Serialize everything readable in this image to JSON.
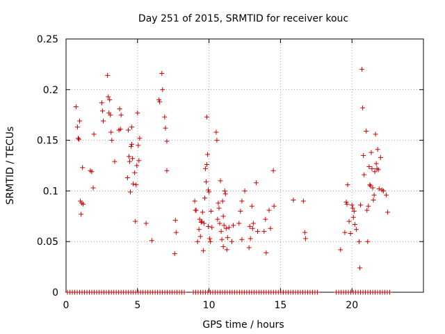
{
  "chart_data": {
    "type": "scatter",
    "title": "Day 251 of 2015, SRMTID for receiver kouc",
    "xlabel": "GPS time / hours",
    "ylabel": "SRMTID / TECUs",
    "xlim": [
      0,
      25
    ],
    "ylim": [
      0,
      0.25
    ],
    "x_ticks": [
      0,
      5,
      10,
      15,
      20
    ],
    "y_ticks": [
      0,
      0.05,
      0.1,
      0.15,
      0.2,
      0.25
    ],
    "x_tick_labels": [
      "0",
      "5",
      "10",
      "15",
      "20"
    ],
    "y_tick_labels": [
      "0",
      "0.05",
      "0.1",
      "0.15",
      "0.2",
      "0.25"
    ],
    "grid": true,
    "marker": "+",
    "marker_color": "#cc0000",
    "series": [
      {
        "name": "SRMTID",
        "points": [
          [
            0.7,
            0.183
          ],
          [
            0.8,
            0.163
          ],
          [
            0.85,
            0.152
          ],
          [
            0.9,
            0.151
          ],
          [
            0.95,
            0.169
          ],
          [
            1.0,
            0.09
          ],
          [
            1.05,
            0.077
          ],
          [
            1.1,
            0.088
          ],
          [
            1.15,
            0.123
          ],
          [
            1.2,
            0.087
          ],
          [
            1.7,
            0.12
          ],
          [
            1.8,
            0.119
          ],
          [
            1.9,
            0.103
          ],
          [
            1.95,
            0.156
          ],
          [
            2.5,
            0.187
          ],
          [
            2.55,
            0.179
          ],
          [
            2.6,
            0.169
          ],
          [
            2.9,
            0.214
          ],
          [
            2.95,
            0.193
          ],
          [
            3.0,
            0.177
          ],
          [
            3.05,
            0.19
          ],
          [
            3.1,
            0.175
          ],
          [
            3.15,
            0.158
          ],
          [
            3.2,
            0.15
          ],
          [
            3.4,
            0.129
          ],
          [
            3.7,
            0.16
          ],
          [
            3.75,
            0.181
          ],
          [
            3.8,
            0.161
          ],
          [
            3.85,
            0.175
          ],
          [
            4.3,
            0.113
          ],
          [
            4.35,
            0.16
          ],
          [
            4.4,
            0.134
          ],
          [
            4.45,
            0.129
          ],
          [
            4.5,
            0.099
          ],
          [
            4.55,
            0.144
          ],
          [
            4.6,
            0.163
          ],
          [
            4.6,
            0.146
          ],
          [
            4.65,
            0.132
          ],
          [
            4.7,
            0.107
          ],
          [
            4.8,
            0.118
          ],
          [
            4.85,
            0.07
          ],
          [
            4.9,
            0.106
          ],
          [
            4.95,
            0.125
          ],
          [
            5.0,
            0.177
          ],
          [
            5.05,
            0.145
          ],
          [
            5.1,
            0.13
          ],
          [
            5.15,
            0.152
          ],
          [
            5.6,
            0.068
          ],
          [
            6.0,
            0.051
          ],
          [
            6.5,
            0.19
          ],
          [
            6.55,
            0.188
          ],
          [
            6.7,
            0.216
          ],
          [
            6.75,
            0.2
          ],
          [
            6.9,
            0.173
          ],
          [
            6.95,
            0.162
          ],
          [
            7.05,
            0.149
          ],
          [
            7.05,
            0.12
          ],
          [
            7.6,
            0.038
          ],
          [
            7.65,
            0.071
          ],
          [
            7.7,
            0.059
          ],
          [
            9.0,
            0.09
          ],
          [
            9.05,
            0.081
          ],
          [
            9.1,
            0.081
          ],
          [
            9.2,
            0.05
          ],
          [
            9.3,
            0.062
          ],
          [
            9.35,
            0.072
          ],
          [
            9.4,
            0.055
          ],
          [
            9.45,
            0.069
          ],
          [
            9.5,
            0.07
          ],
          [
            9.55,
            0.079
          ],
          [
            9.6,
            0.041
          ],
          [
            9.65,
            0.068
          ],
          [
            9.7,
            0.093
          ],
          [
            9.75,
            0.122
          ],
          [
            9.8,
            0.109
          ],
          [
            9.85,
            0.126
          ],
          [
            9.85,
            0.173
          ],
          [
            9.9,
            0.136
          ],
          [
            9.95,
            0.101
          ],
          [
            9.95,
            0.065
          ],
          [
            10.0,
            0.099
          ],
          [
            10.05,
            0.053
          ],
          [
            10.1,
            0.05
          ],
          [
            10.15,
            0.08
          ],
          [
            10.2,
            0.064
          ],
          [
            10.5,
            0.158
          ],
          [
            10.55,
            0.15
          ],
          [
            10.6,
            0.072
          ],
          [
            10.65,
            0.088
          ],
          [
            10.7,
            0.083
          ],
          [
            10.75,
            0.068
          ],
          [
            10.8,
            0.11
          ],
          [
            10.85,
            0.06
          ],
          [
            10.9,
            0.052
          ],
          [
            10.95,
            0.09
          ],
          [
            11.0,
            0.075
          ],
          [
            11.0,
            0.045
          ],
          [
            11.05,
            0.066
          ],
          [
            11.1,
            0.1
          ],
          [
            11.15,
            0.097
          ],
          [
            11.2,
            0.063
          ],
          [
            11.25,
            0.042
          ],
          [
            11.3,
            0.054
          ],
          [
            11.4,
            0.064
          ],
          [
            11.6,
            0.05
          ],
          [
            11.7,
            0.066
          ],
          [
            12.1,
            0.068
          ],
          [
            12.2,
            0.08
          ],
          [
            12.3,
            0.09
          ],
          [
            12.3,
            0.052
          ],
          [
            12.5,
            0.1
          ],
          [
            12.8,
            0.044
          ],
          [
            12.85,
            0.065
          ],
          [
            12.9,
            0.053
          ],
          [
            13.0,
            0.085
          ],
          [
            13.05,
            0.063
          ],
          [
            13.1,
            0.068
          ],
          [
            13.3,
            0.108
          ],
          [
            13.4,
            0.06
          ],
          [
            13.85,
            0.06
          ],
          [
            13.95,
            0.072
          ],
          [
            14.0,
            0.039
          ],
          [
            14.2,
            0.081
          ],
          [
            14.3,
            0.063
          ],
          [
            14.5,
            0.12
          ],
          [
            14.55,
            0.085
          ],
          [
            15.9,
            0.091
          ],
          [
            16.6,
            0.09
          ],
          [
            16.7,
            0.059
          ],
          [
            16.75,
            0.053
          ],
          [
            19.2,
            0.042
          ],
          [
            19.5,
            0.059
          ],
          [
            19.6,
            0.089
          ],
          [
            19.65,
            0.087
          ],
          [
            19.7,
            0.106
          ],
          [
            19.8,
            0.07
          ],
          [
            19.9,
            0.058
          ],
          [
            20.0,
            0.086
          ],
          [
            20.05,
            0.083
          ],
          [
            20.1,
            0.074
          ],
          [
            20.15,
            0.08
          ],
          [
            20.2,
            0.067
          ],
          [
            20.3,
            0.062
          ],
          [
            20.5,
            0.05
          ],
          [
            20.55,
            0.024
          ],
          [
            20.6,
            0.086
          ],
          [
            20.7,
            0.22
          ],
          [
            20.75,
            0.182
          ],
          [
            20.8,
            0.135
          ],
          [
            20.85,
            0.116
          ],
          [
            21.0,
            0.159
          ],
          [
            21.05,
            0.081
          ],
          [
            21.1,
            0.05
          ],
          [
            21.15,
            0.085
          ],
          [
            21.2,
            0.124
          ],
          [
            21.25,
            0.106
          ],
          [
            21.3,
            0.105
          ],
          [
            21.35,
            0.138
          ],
          [
            21.4,
            0.122
          ],
          [
            21.45,
            0.103
          ],
          [
            21.5,
            0.091
          ],
          [
            21.55,
            0.096
          ],
          [
            21.6,
            0.119
          ],
          [
            21.65,
            0.156
          ],
          [
            21.7,
            0.127
          ],
          [
            21.75,
            0.122
          ],
          [
            21.8,
            0.141
          ],
          [
            21.85,
            0.121
          ],
          [
            21.9,
            0.102
          ],
          [
            22.0,
            0.133
          ],
          [
            22.1,
            0.101
          ],
          [
            22.2,
            0.1
          ],
          [
            22.4,
            0.096
          ],
          [
            22.5,
            0.079
          ]
        ]
      }
    ],
    "zero_band": {
      "y": 0,
      "x_ranges": [
        [
          0.1,
          3.0
        ],
        [
          3.0,
          8.3
        ],
        [
          8.9,
          15.2
        ],
        [
          15.2,
          17.6
        ],
        [
          18.9,
          22.8
        ]
      ],
      "spacing": 0.17
    }
  }
}
